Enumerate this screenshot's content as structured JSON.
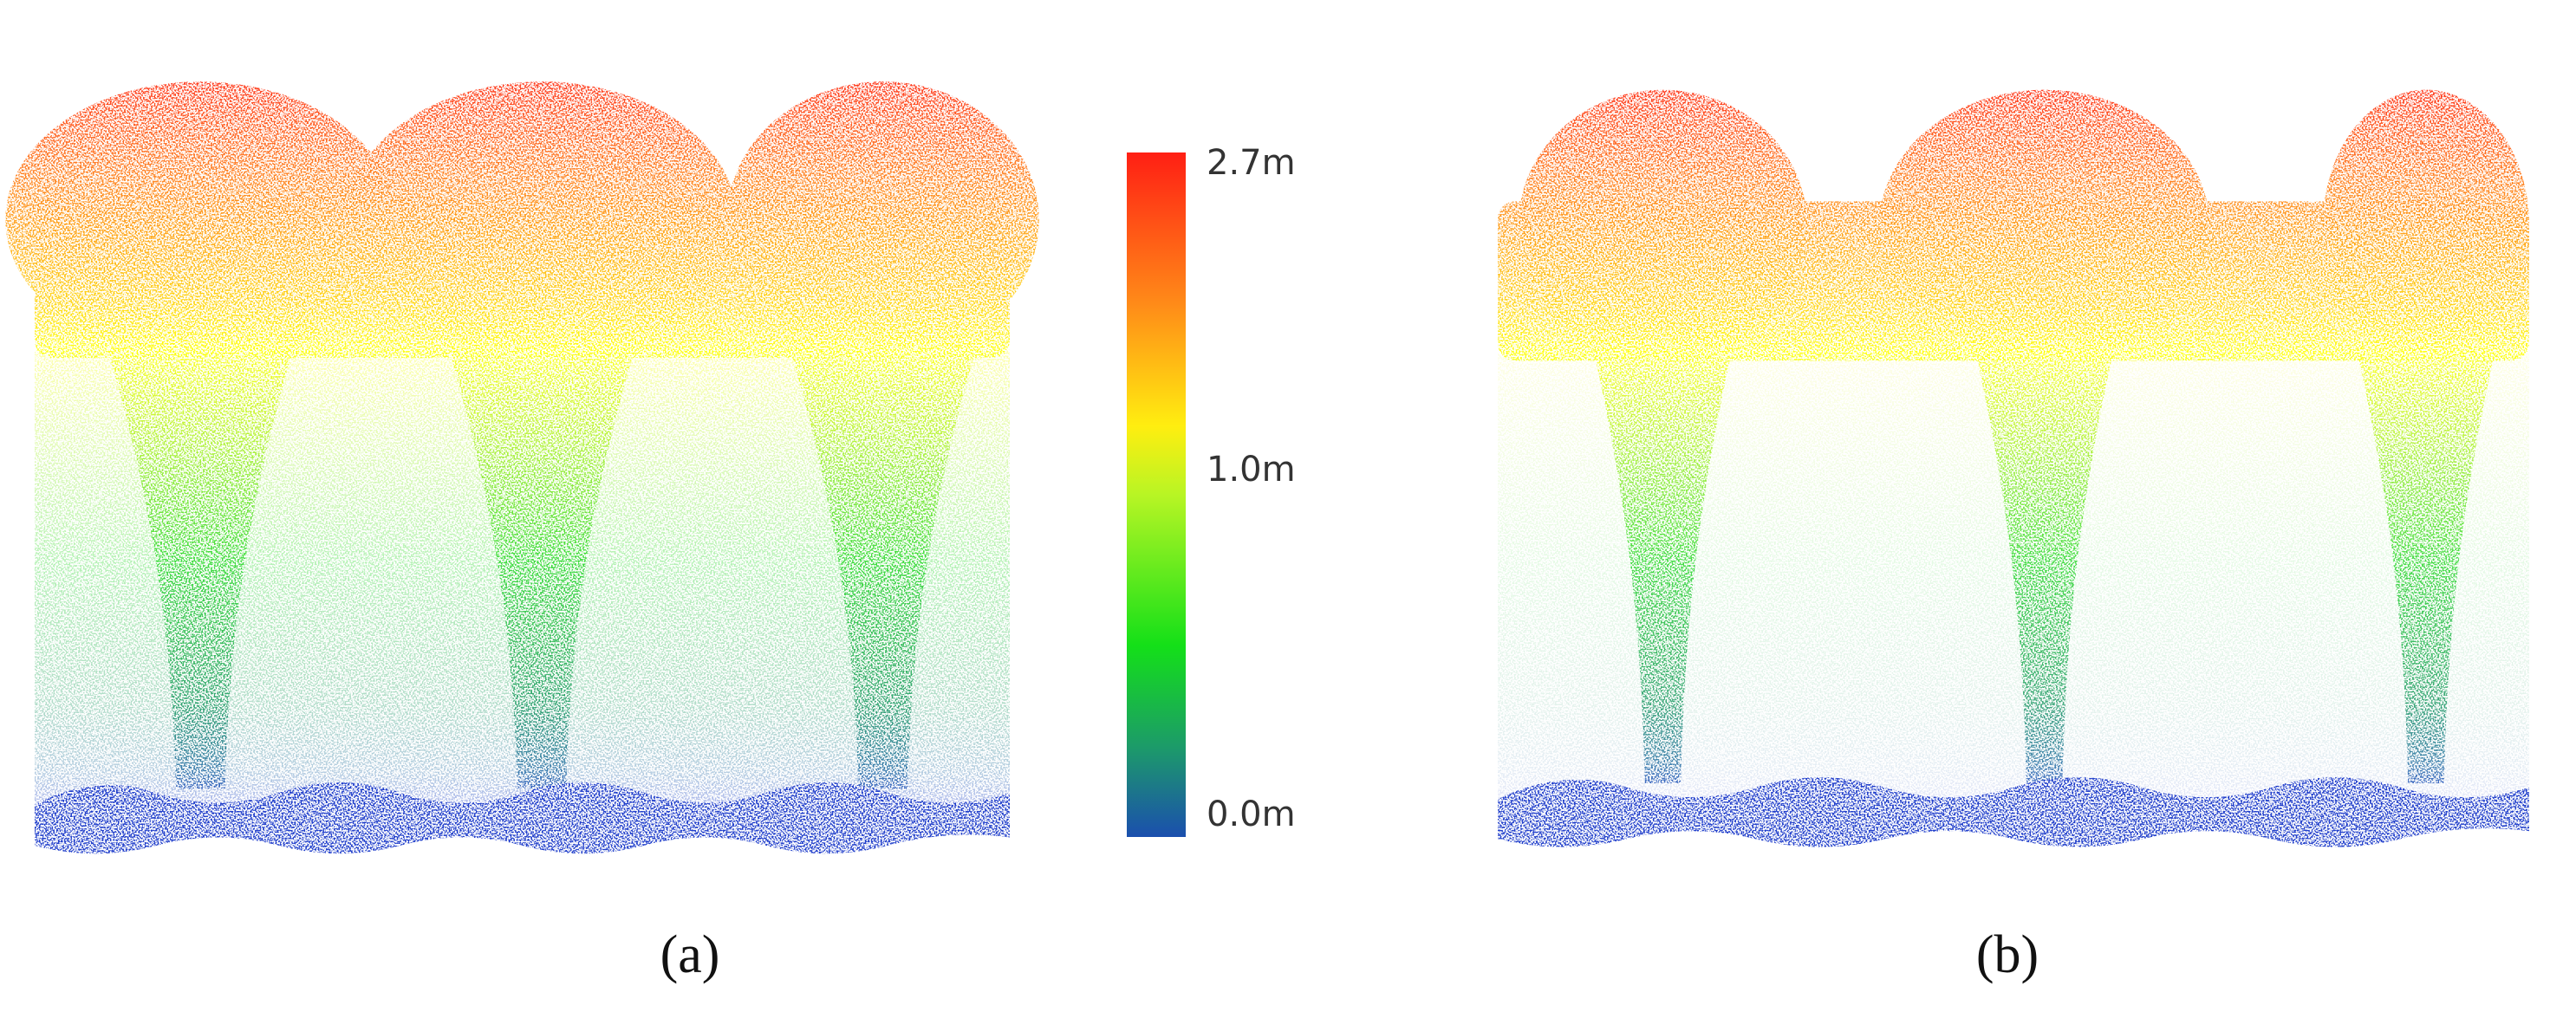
{
  "colorbar": {
    "labels": {
      "top": "2.7m",
      "middle": "1.0m",
      "bottom": "0.0m"
    }
  },
  "panels": [
    {
      "caption": "(a)"
    },
    {
      "caption": "(b)"
    }
  ]
}
